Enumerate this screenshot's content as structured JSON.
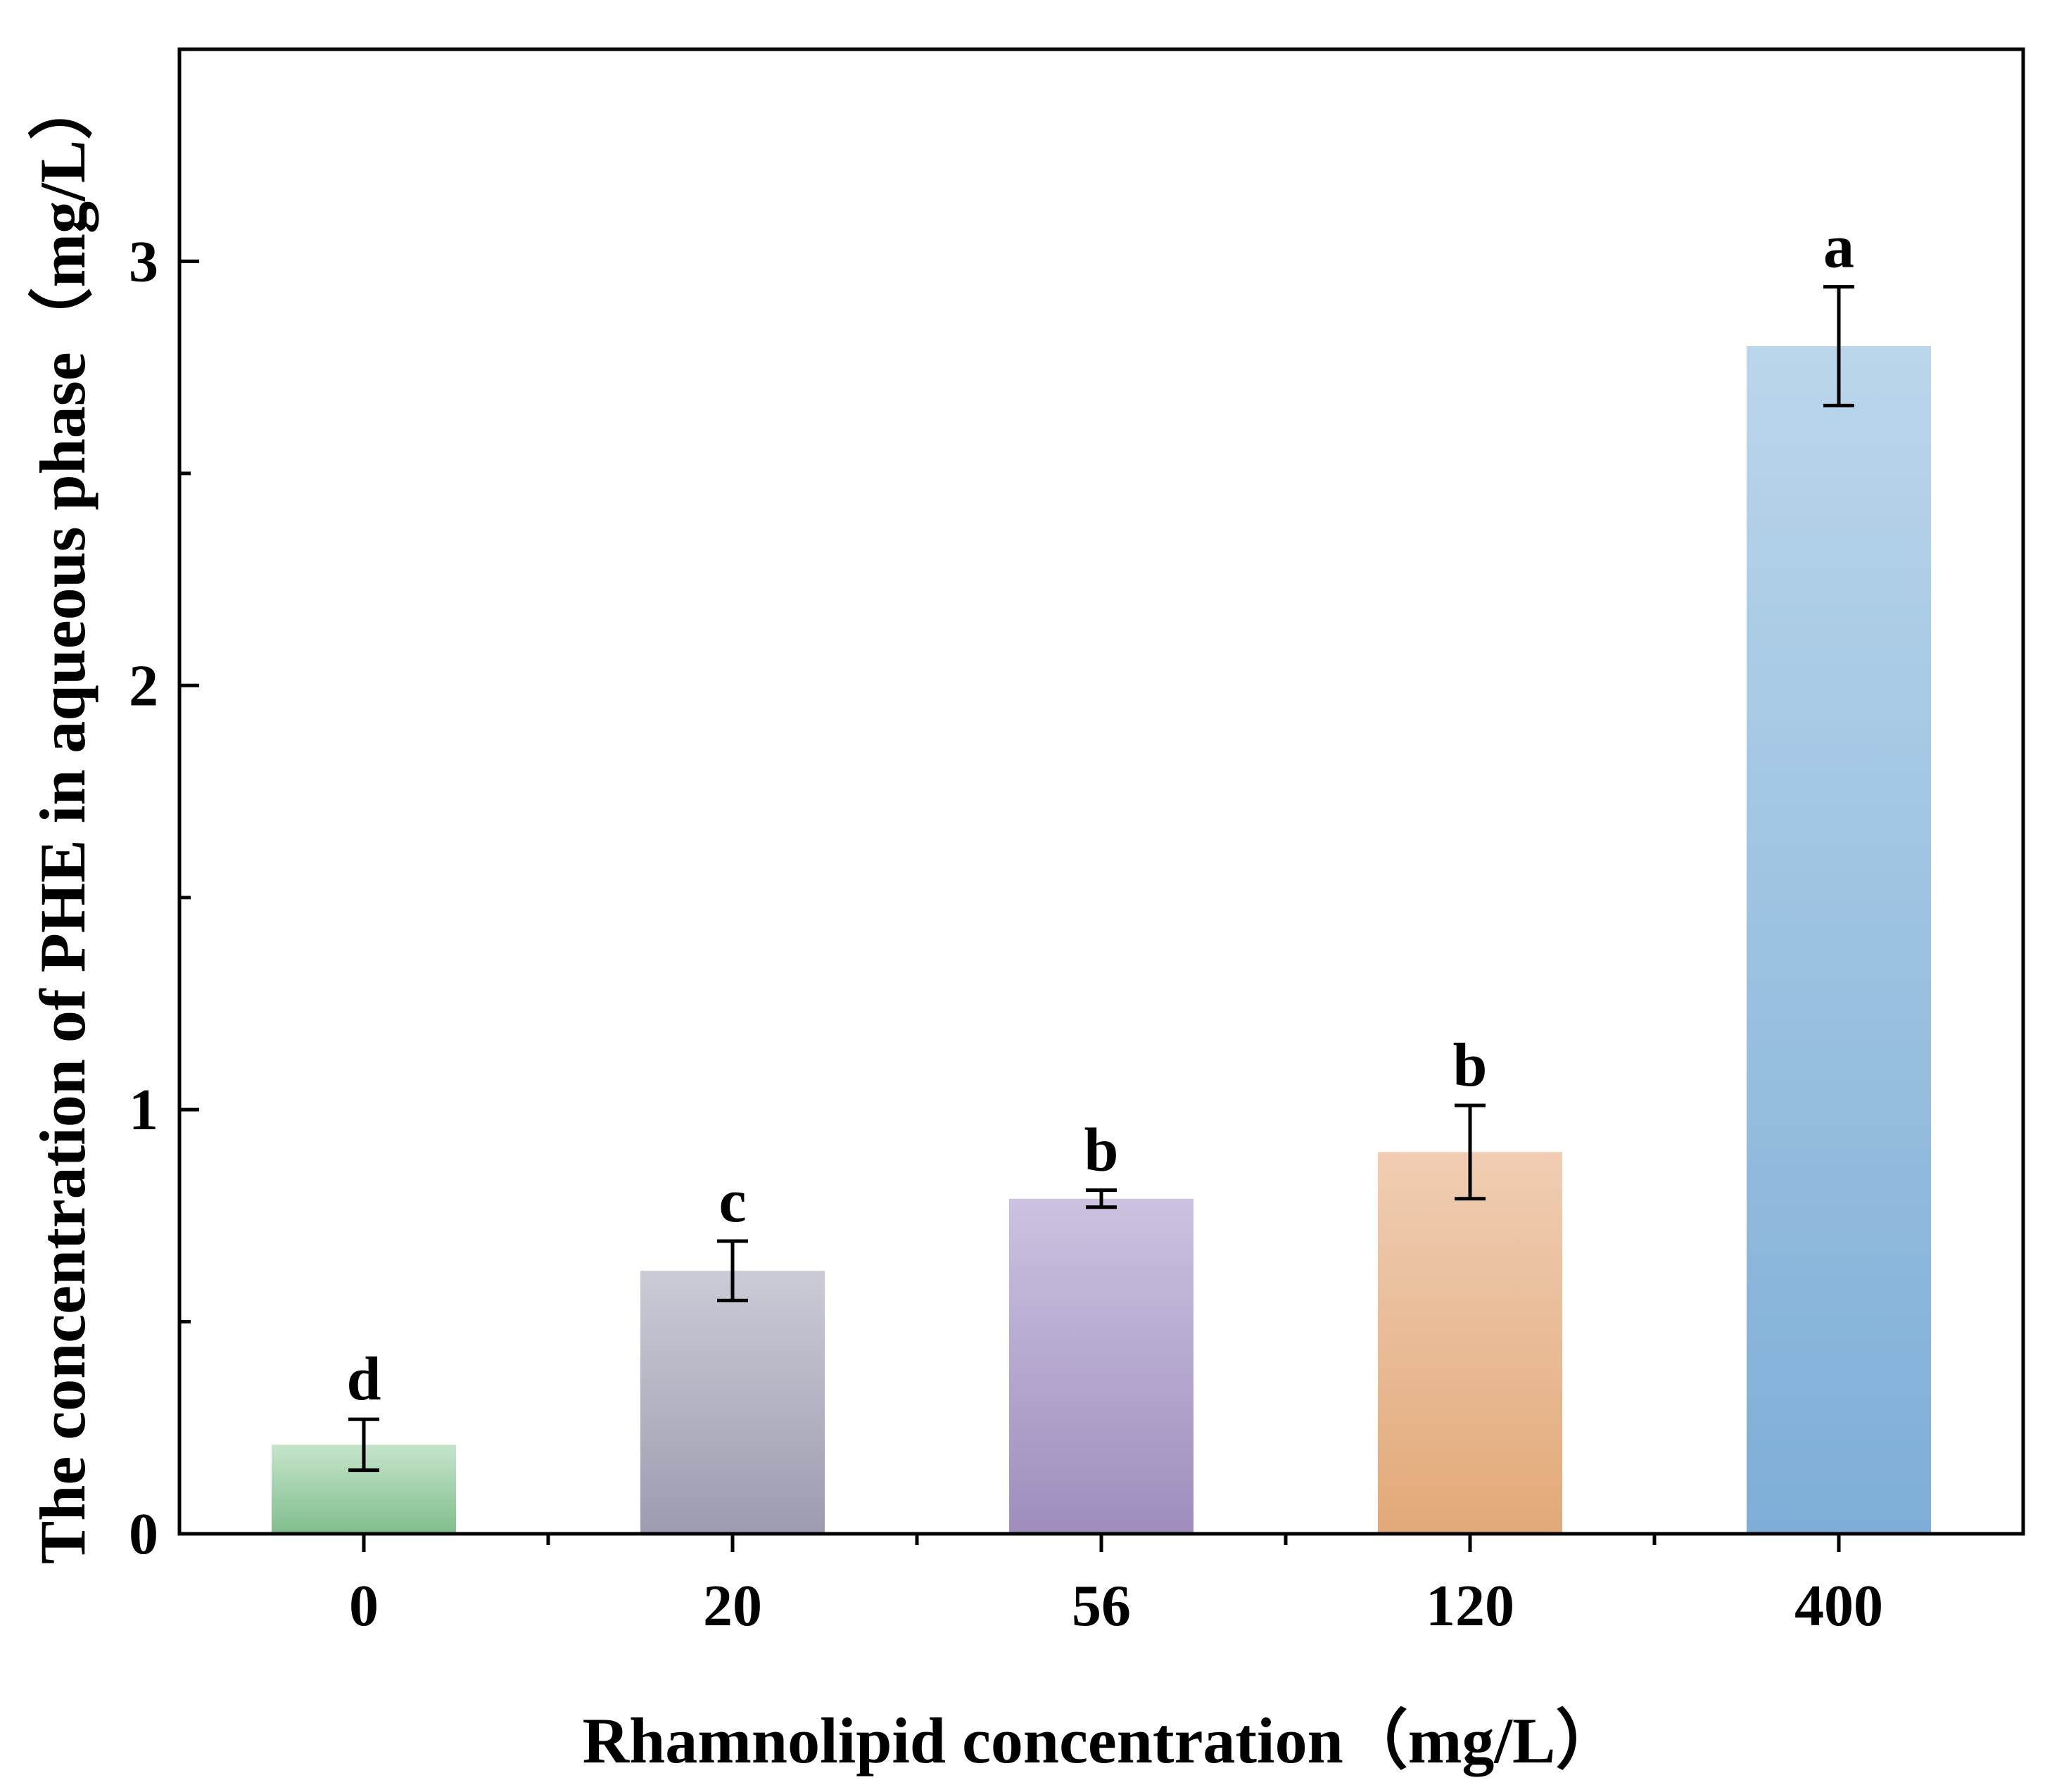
{
  "chart_data": {
    "type": "bar",
    "title": "",
    "xlabel": "Rhamnolipid concentration（mg/L）",
    "ylabel": "The concentration of PHE in aqueous phase（mg/L）",
    "categories": [
      "0",
      "20",
      "56",
      "120",
      "400"
    ],
    "values": [
      0.21,
      0.62,
      0.79,
      0.9,
      2.8
    ],
    "errors": [
      0.06,
      0.07,
      0.02,
      0.11,
      0.14
    ],
    "significance": [
      "d",
      "c",
      "b",
      "b",
      "a"
    ],
    "ylim": [
      0,
      3.5
    ],
    "yticks": [
      0,
      1,
      2,
      3
    ],
    "ytick_labels": [
      "0",
      "1",
      "2",
      "3"
    ],
    "grid": false,
    "legend": "none",
    "colors": [
      {
        "top": "#c6e4cc",
        "bottom": "#80be8c"
      },
      {
        "top": "#cacbd6",
        "bottom": "#9c9cb0"
      },
      {
        "top": "#ccc2e0",
        "bottom": "#9e8dbd"
      },
      {
        "top": "#f0cdb3",
        "bottom": "#e2a978"
      },
      {
        "top": "#bad6eb",
        "bottom": "#7eaed7"
      }
    ]
  }
}
